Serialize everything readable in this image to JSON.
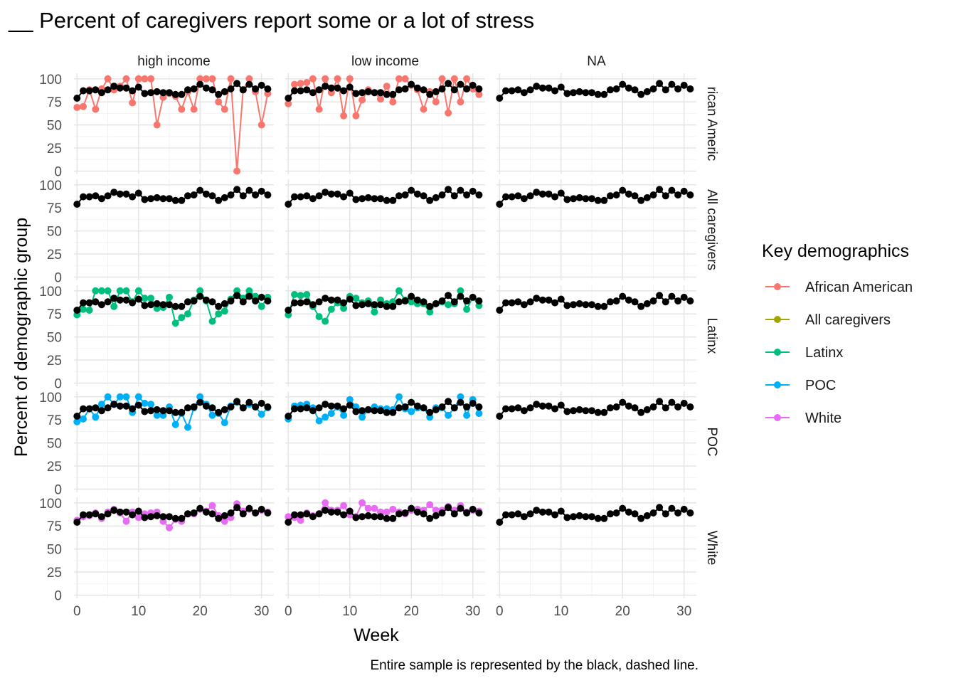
{
  "chart_data": {
    "type": "line",
    "title": "__ Percent of caregivers report some or a lot of stress",
    "xlabel": "Week",
    "ylabel": "Percent of demographic group",
    "caption": "Entire sample is represented by the black, dashed line.",
    "facet_columns": [
      "high income",
      "low income",
      "NA"
    ],
    "facet_rows": [
      "African American",
      "All caregivers",
      "Latinx",
      "POC",
      "White"
    ],
    "facet_row_labels_shown": [
      "rican Americ",
      "All caregivers",
      "Latinx",
      "POC",
      "White"
    ],
    "xlim": [
      -0.5,
      32.0
    ],
    "ylim": [
      0,
      100
    ],
    "x_ticks": [
      0,
      10,
      20,
      30
    ],
    "y_ticks": [
      0,
      25,
      50,
      75,
      100
    ],
    "grid": true,
    "legend": {
      "title": "Key demographics",
      "placement": "right",
      "entries": [
        {
          "label": "African American",
          "color": "#F8766D"
        },
        {
          "label": "All caregivers",
          "color": "#A3A500"
        },
        {
          "label": "Latinx",
          "color": "#00BF7D"
        },
        {
          "label": "POC",
          "color": "#00B0F6"
        },
        {
          "label": "White",
          "color": "#E76BF3"
        }
      ]
    },
    "entire_sample": {
      "color": "#000000",
      "x": [
        0,
        1,
        2,
        3,
        4,
        5,
        6,
        7,
        8,
        9,
        10,
        11,
        12,
        13,
        14,
        15,
        16,
        17,
        18,
        19,
        20,
        21,
        22,
        23,
        24,
        25,
        26,
        27,
        28,
        29,
        30,
        31
      ],
      "values": [
        79,
        87,
        87,
        88,
        85,
        88,
        92,
        90,
        90,
        87,
        91,
        84,
        85,
        86,
        85,
        85,
        83,
        83,
        88,
        89,
        94,
        90,
        88,
        83,
        86,
        89,
        95,
        88,
        94,
        89,
        93,
        89
      ]
    },
    "panels": [
      {
        "row": "African American",
        "col": "high income",
        "color": "#F8766D",
        "x": [
          0,
          1,
          2,
          3,
          4,
          5,
          6,
          7,
          8,
          9,
          10,
          11,
          12,
          13,
          14,
          15,
          16,
          17,
          18,
          19,
          20,
          21,
          22,
          23,
          24,
          25,
          26,
          27,
          28,
          29,
          30,
          31
        ],
        "values": [
          69,
          70,
          88,
          67,
          89,
          100,
          88,
          92,
          100,
          74,
          100,
          100,
          100,
          50,
          80,
          84,
          81,
          67,
          86,
          67,
          100,
          100,
          100,
          75,
          67,
          100,
          0,
          88,
          100,
          86,
          50,
          84
        ]
      },
      {
        "row": "African American",
        "col": "low income",
        "color": "#F8766D",
        "x": [
          0,
          1,
          2,
          3,
          4,
          5,
          6,
          7,
          8,
          9,
          10,
          11,
          12,
          13,
          14,
          15,
          16,
          17,
          18,
          19,
          20,
          21,
          22,
          23,
          24,
          25,
          26,
          27,
          28,
          29,
          30,
          31
        ],
        "values": [
          73,
          94,
          95,
          96,
          100,
          67,
          100,
          85,
          100,
          60,
          100,
          60,
          77,
          88,
          85,
          78,
          92,
          75,
          100,
          100,
          93,
          88,
          67,
          86,
          75,
          100,
          63,
          100,
          75,
          100,
          89,
          83
        ]
      },
      {
        "row": "Latinx",
        "col": "high income",
        "color": "#00BF7D",
        "x": [
          0,
          1,
          2,
          3,
          4,
          5,
          6,
          7,
          8,
          9,
          10,
          11,
          12,
          13,
          14,
          15,
          16,
          17,
          18,
          19,
          20,
          21,
          22,
          23,
          24,
          25,
          26,
          27,
          28,
          29,
          30,
          31
        ],
        "values": [
          74,
          80,
          79,
          100,
          100,
          100,
          83,
          100,
          100,
          88,
          100,
          92,
          92,
          81,
          82,
          93,
          65,
          71,
          75,
          90,
          100,
          89,
          67,
          75,
          78,
          91,
          100,
          92,
          100,
          94,
          83,
          93
        ]
      },
      {
        "row": "Latinx",
        "col": "low income",
        "color": "#00BF7D",
        "x": [
          0,
          1,
          2,
          3,
          4,
          5,
          6,
          7,
          8,
          9,
          10,
          11,
          12,
          13,
          14,
          15,
          16,
          17,
          18,
          19,
          20,
          21,
          22,
          23,
          24,
          25,
          26,
          27,
          28,
          29,
          30,
          31
        ],
        "values": [
          74,
          96,
          95,
          96,
          83,
          72,
          67,
          80,
          87,
          81,
          94,
          92,
          87,
          89,
          77,
          90,
          86,
          88,
          100,
          90,
          88,
          86,
          86,
          77,
          86,
          88,
          85,
          86,
          100,
          80,
          93,
          84
        ]
      },
      {
        "row": "POC",
        "col": "high income",
        "color": "#00B0F6",
        "x": [
          0,
          1,
          2,
          3,
          4,
          5,
          6,
          7,
          8,
          9,
          10,
          11,
          12,
          13,
          14,
          15,
          16,
          17,
          18,
          19,
          20,
          21,
          22,
          23,
          24,
          25,
          26,
          27,
          28,
          29,
          30,
          31
        ],
        "values": [
          73,
          76,
          87,
          78,
          92,
          100,
          92,
          100,
          100,
          83,
          100,
          93,
          92,
          80,
          80,
          89,
          70,
          82,
          67,
          88,
          100,
          92,
          80,
          82,
          72,
          90,
          94,
          88,
          92,
          89,
          81,
          88
        ]
      },
      {
        "row": "POC",
        "col": "low income",
        "color": "#00B0F6",
        "x": [
          0,
          1,
          2,
          3,
          4,
          5,
          6,
          7,
          8,
          9,
          10,
          11,
          12,
          13,
          14,
          15,
          16,
          17,
          18,
          19,
          20,
          21,
          22,
          23,
          24,
          25,
          26,
          27,
          28,
          29,
          30,
          31
        ],
        "values": [
          76,
          90,
          91,
          92,
          88,
          74,
          78,
          82,
          89,
          80,
          97,
          89,
          78,
          86,
          89,
          87,
          87,
          86,
          100,
          87,
          84,
          88,
          88,
          78,
          88,
          88,
          80,
          88,
          100,
          80,
          97,
          82
        ]
      },
      {
        "row": "White",
        "col": "high income",
        "color": "#E76BF3",
        "x": [
          0,
          1,
          2,
          3,
          4,
          5,
          6,
          7,
          8,
          9,
          10,
          11,
          12,
          13,
          14,
          15,
          16,
          17,
          18,
          19,
          20,
          21,
          22,
          23,
          24,
          25,
          26,
          27,
          28,
          29,
          30,
          31
        ],
        "values": [
          81,
          85,
          86,
          89,
          83,
          90,
          93,
          89,
          80,
          90,
          84,
          88,
          89,
          90,
          80,
          73,
          82,
          80,
          88,
          88,
          93,
          91,
          97,
          86,
          80,
          84,
          99,
          91,
          93,
          89,
          92,
          90
        ]
      },
      {
        "row": "White",
        "col": "low income",
        "color": "#E76BF3",
        "x": [
          0,
          1,
          2,
          3,
          4,
          5,
          6,
          7,
          8,
          9,
          10,
          11,
          12,
          13,
          14,
          15,
          16,
          17,
          18,
          19,
          20,
          21,
          22,
          23,
          24,
          25,
          26,
          27,
          28,
          29,
          30,
          31
        ],
        "values": [
          85,
          84,
          81,
          89,
          86,
          88,
          100,
          92,
          92,
          97,
          87,
          85,
          100,
          94,
          94,
          90,
          90,
          93,
          90,
          88,
          92,
          93,
          92,
          98,
          92,
          92,
          96,
          92,
          97,
          90,
          92,
          91
        ]
      }
    ]
  }
}
